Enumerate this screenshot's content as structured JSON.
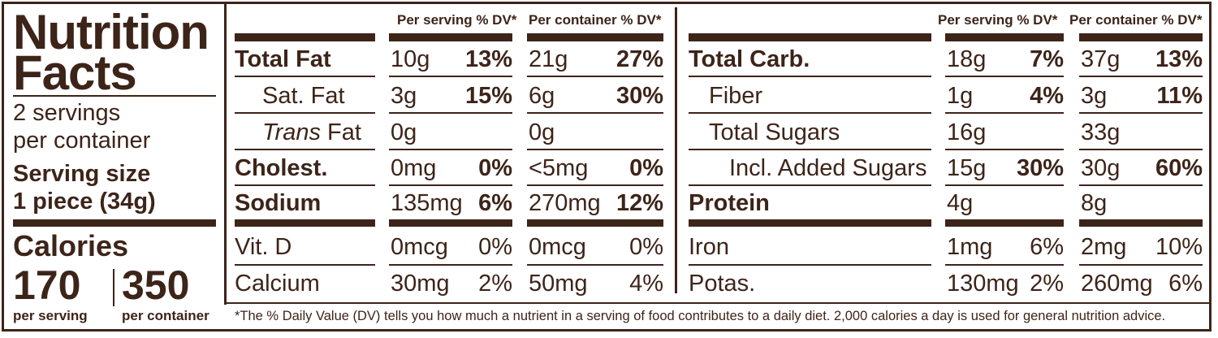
{
  "left": {
    "title_line1": "Nutrition",
    "title_line2": "Facts",
    "servings_line1": "2 servings",
    "servings_line2": "per container",
    "serving_size_label": "Serving size",
    "serving_size_value": "1 piece (34g)",
    "calories_label": "Calories",
    "calories_per_serving": "170",
    "calories_per_container": "350",
    "per_serving_label": "per serving",
    "per_container_label": "per container"
  },
  "headers": {
    "per_serving": "Per serving % DV*",
    "per_container": "Per container % DV*"
  },
  "left_table": [
    {
      "name": "Total Fat",
      "s_amt": "10g",
      "s_dv": "13%",
      "c_amt": "21g",
      "c_dv": "27%"
    },
    {
      "name": "Sat. Fat",
      "s_amt": "3g",
      "s_dv": "15%",
      "c_amt": "6g",
      "c_dv": "30%"
    },
    {
      "name_italic": "Trans",
      "name_rest": " Fat",
      "s_amt": "0g",
      "s_dv": "",
      "c_amt": "0g",
      "c_dv": ""
    },
    {
      "name": "Cholest.",
      "s_amt": "0mg",
      "s_dv": "0%",
      "c_amt": "<5mg",
      "c_dv": "0%"
    },
    {
      "name": "Sodium",
      "s_amt": "135mg",
      "s_dv": "6%",
      "c_amt": "270mg",
      "c_dv": "12%"
    },
    {
      "name": "Vit. D",
      "s_amt": "0mcg",
      "s_dv": "0%",
      "c_amt": "0mcg",
      "c_dv": "0%"
    },
    {
      "name": "Calcium",
      "s_amt": "30mg",
      "s_dv": "2%",
      "c_amt": "50mg",
      "c_dv": "4%"
    }
  ],
  "right_table": [
    {
      "name": "Total Carb.",
      "s_amt": "18g",
      "s_dv": "7%",
      "c_amt": "37g",
      "c_dv": "13%"
    },
    {
      "name": "Fiber",
      "s_amt": "1g",
      "s_dv": "4%",
      "c_amt": "3g",
      "c_dv": "11%"
    },
    {
      "name": "Total Sugars",
      "s_amt": "16g",
      "s_dv": "",
      "c_amt": "33g",
      "c_dv": ""
    },
    {
      "name": "Incl. Added Sugars",
      "s_amt": "15g",
      "s_dv": "30%",
      "c_amt": "30g",
      "c_dv": "60%"
    },
    {
      "name": "Protein",
      "s_amt": "4g",
      "s_dv": "",
      "c_amt": "8g",
      "c_dv": ""
    },
    {
      "name": "Iron",
      "s_amt": "1mg",
      "s_dv": "6%",
      "c_amt": "2mg",
      "c_dv": "10%"
    },
    {
      "name": "Potas.",
      "s_amt": "130mg",
      "s_dv": "2%",
      "c_amt": "260mg",
      "c_dv": "6%"
    }
  ],
  "footnote": "*The % Daily Value (DV) tells you how much a nutrient in a serving of food contributes to a daily diet. 2,000 calories a day is used for general nutrition advice.",
  "colors": {
    "ink": "#3d2419",
    "background": "#ffffff"
  }
}
